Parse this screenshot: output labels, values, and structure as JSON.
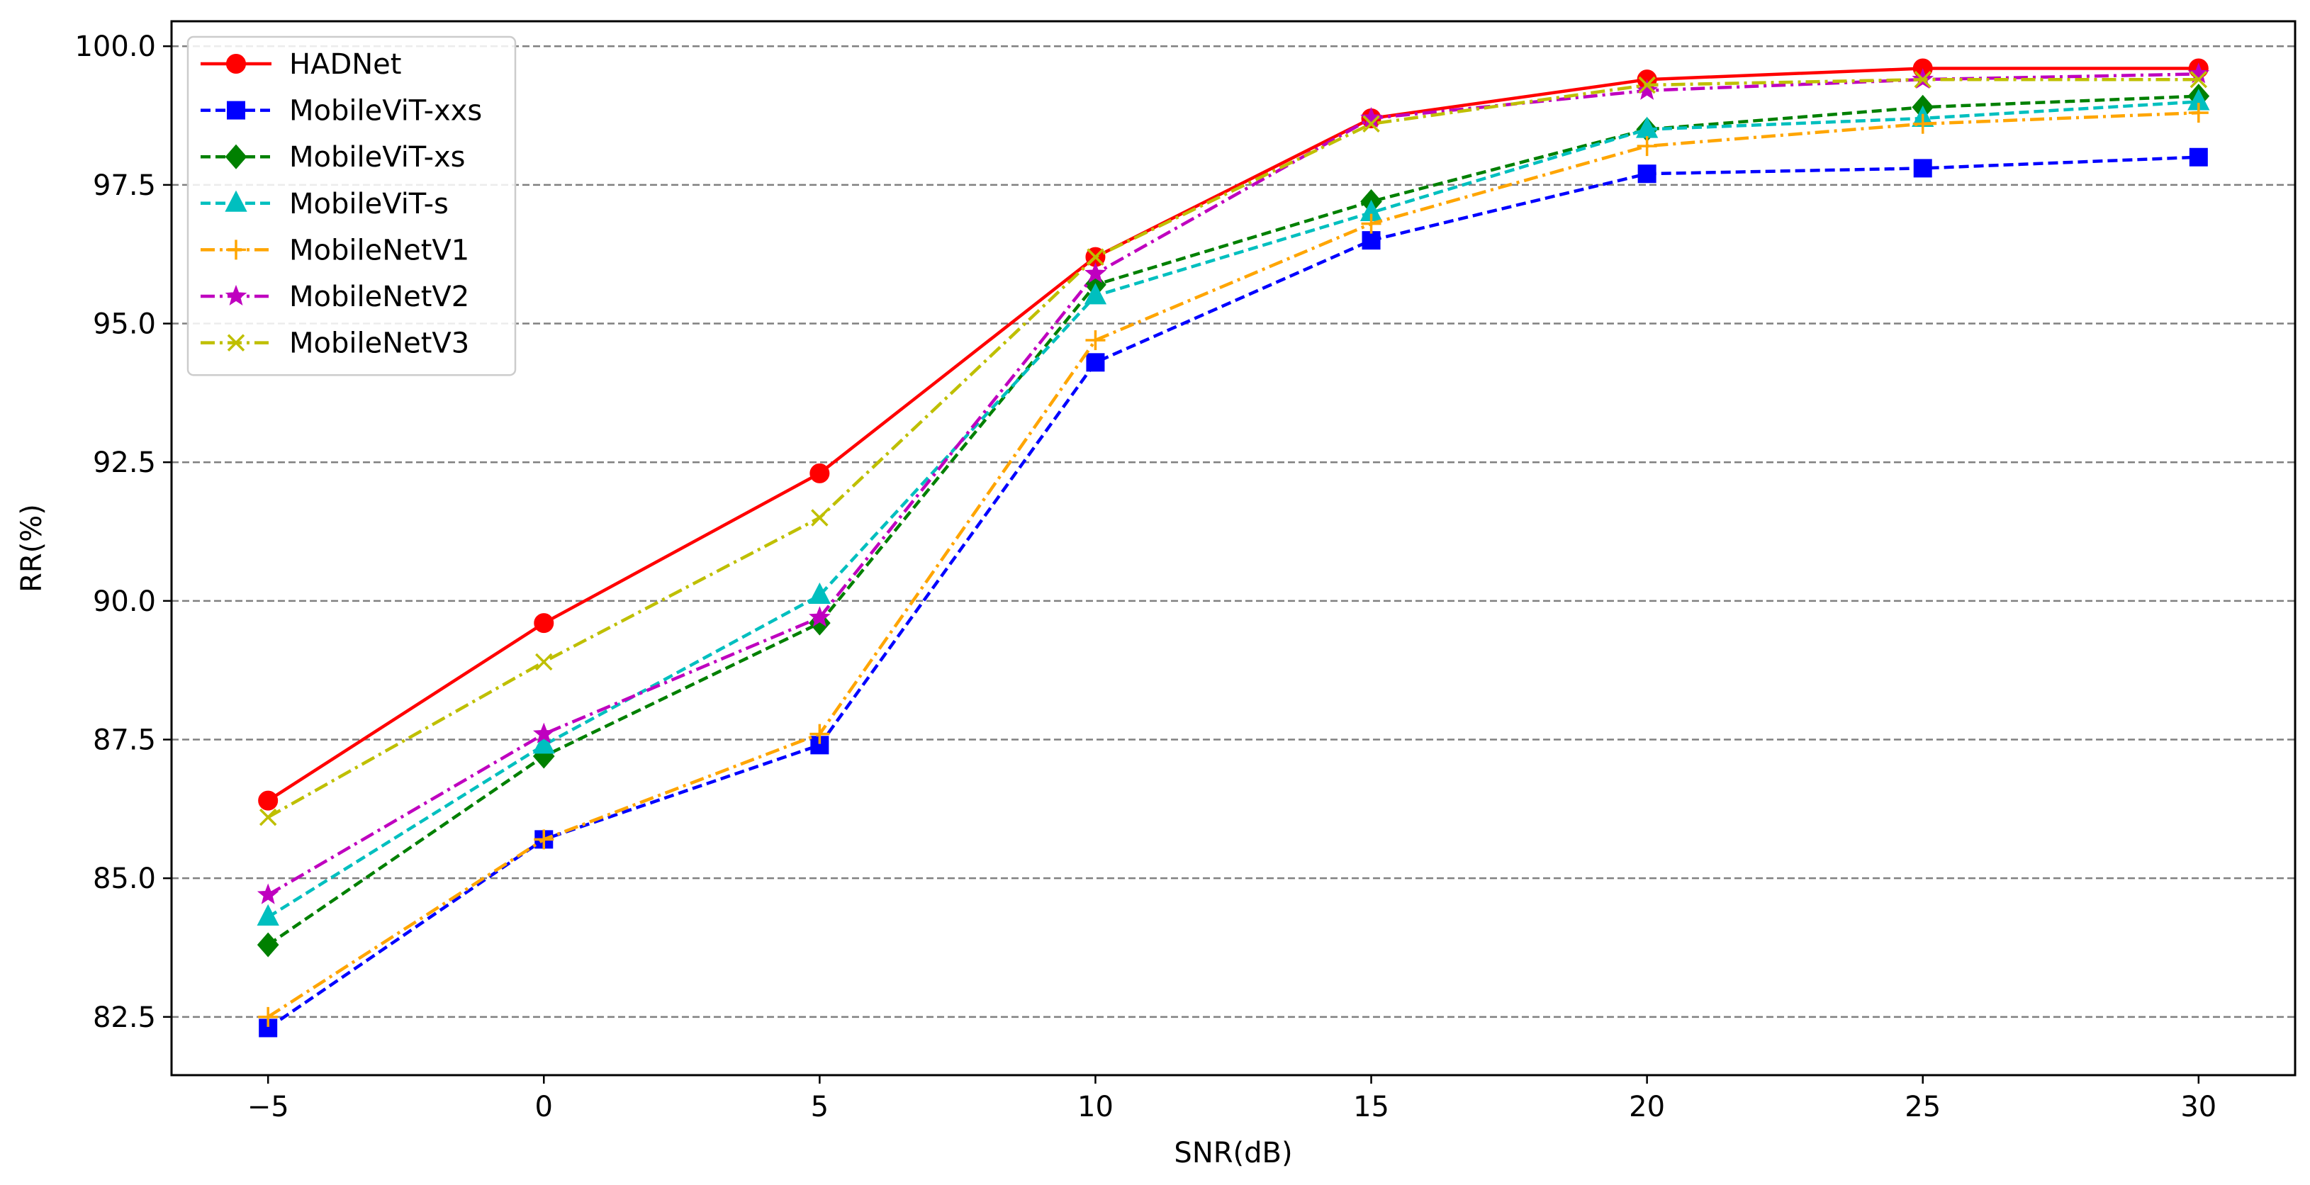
{
  "chart_data": {
    "type": "line",
    "title": "",
    "xlabel": "SNR(dB)",
    "ylabel": "RR(%)",
    "x": [
      -5,
      0,
      5,
      10,
      15,
      20,
      25,
      30
    ],
    "x_ticks": [
      -5,
      0,
      5,
      10,
      15,
      20,
      25,
      30
    ],
    "x_tick_labels": [
      "−5",
      "0",
      "5",
      "10",
      "15",
      "20",
      "25",
      "30"
    ],
    "y_ticks": [
      82.5,
      85.0,
      87.5,
      90.0,
      92.5,
      95.0,
      97.5,
      100.0
    ],
    "y_tick_labels": [
      "82.5",
      "85.0",
      "87.5",
      "90.0",
      "92.5",
      "95.0",
      "97.5",
      "100.0"
    ],
    "xlim": [
      -6.75,
      31.75
    ],
    "ylim": [
      81.45,
      100.45
    ],
    "grid": "horizontal dashed",
    "legend_position": "top-left",
    "series": [
      {
        "name": "HADNet",
        "color": "#ff0000",
        "dash": "solid",
        "marker": "circle",
        "values": [
          86.4,
          89.6,
          92.3,
          96.2,
          98.7,
          99.4,
          99.6,
          99.6
        ]
      },
      {
        "name": "MobileViT-xxs",
        "color": "#0000ff",
        "dash": "dashed",
        "marker": "square",
        "values": [
          82.3,
          85.7,
          87.4,
          94.3,
          96.5,
          97.7,
          97.8,
          98.0
        ]
      },
      {
        "name": "MobileViT-xs",
        "color": "#008000",
        "dash": "dashed",
        "marker": "diamond",
        "values": [
          83.8,
          87.2,
          89.6,
          95.7,
          97.2,
          98.5,
          98.9,
          99.1
        ]
      },
      {
        "name": "MobileViT-s",
        "color": "#00bfbf",
        "dash": "dashed",
        "marker": "triangle",
        "values": [
          84.3,
          87.4,
          90.1,
          95.5,
          97.0,
          98.5,
          98.7,
          99.0
        ]
      },
      {
        "name": "MobileNetV1",
        "color": "#ffa500",
        "dash": "dashdot",
        "marker": "plus",
        "values": [
          82.5,
          85.7,
          87.6,
          94.7,
          96.8,
          98.2,
          98.6,
          98.8
        ]
      },
      {
        "name": "MobileNetV2",
        "color": "#bf00bf",
        "dash": "dashdot",
        "marker": "star",
        "values": [
          84.7,
          87.6,
          89.7,
          95.9,
          98.7,
          99.2,
          99.4,
          99.5
        ]
      },
      {
        "name": "MobileNetV3",
        "color": "#bfbf00",
        "dash": "dashdot",
        "marker": "x",
        "values": [
          86.1,
          88.9,
          91.5,
          96.2,
          98.6,
          99.3,
          99.4,
          99.4
        ]
      }
    ]
  }
}
